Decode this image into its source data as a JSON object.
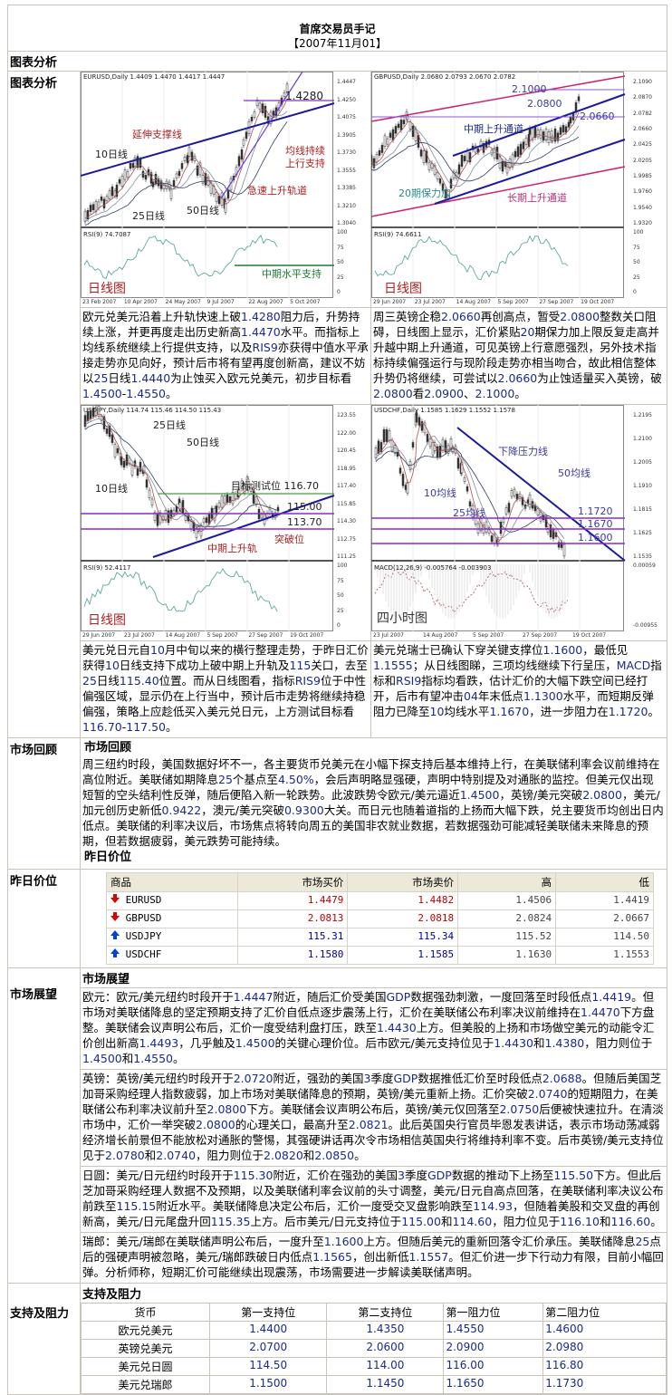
{
  "header": {
    "title": "首席交易员手记",
    "date": "【2007年11月01】"
  },
  "sections": {
    "chart_analysis": "图表分析",
    "market_review": "市场回顾",
    "yesterday_prices": "昨日价位",
    "market_outlook": "市场展望",
    "support_resistance": "支持及阻力"
  },
  "charts": [
    {
      "header": "EURUSD,Daily  1.4409 1.4470 1.4417 1.4447",
      "yticks": [
        "1.4447",
        "1.4250",
        "1.4075",
        "1.3905",
        "1.3730",
        "1.3555",
        "1.3385",
        "1.3210",
        "1.3040"
      ],
      "ind": "RSI(9) 74.7087",
      "indticks": [
        "100",
        "75",
        "50",
        "25",
        "0"
      ],
      "dates": [
        "23 Feb 2007",
        "10 Apr 2007",
        "24 May 2007",
        "9 Jul 2007",
        "22 Aug 2007",
        "5 Oct 2007"
      ],
      "annotations": [
        "1.4280",
        "延伸支撑线",
        "10日线",
        "均线持续",
        "上行支持",
        "急速上升轨道",
        "25日线",
        "50日线",
        "中期水平支持",
        "日线图"
      ]
    },
    {
      "header": "GBPUSD,Daily  2.0680 2.0793 2.0670 2.0782",
      "yticks": [
        "2.1090",
        "2.0870",
        "2.0782",
        "2.0660",
        "2.0425",
        "2.0205",
        "1.9985",
        "1.9760",
        "1.9540",
        "1.9320"
      ],
      "ind": "RSI(9) 74.6611",
      "indticks": [
        "100",
        "75",
        "50",
        "25",
        "0"
      ],
      "dates": [
        "29 Jun 2007",
        "23 Jul 2007",
        "14 Aug 2007",
        "5 Sep 2007",
        "27 Sep 2007",
        "19 Oct 2007"
      ],
      "annotations": [
        "2.1000",
        "2.0800",
        "2.0660",
        "中期上升通道",
        "20期保力加",
        "长期上升通道",
        "日线图"
      ]
    },
    {
      "header": "USDJPY,Daily  114.74 115.46 114.50 115.43",
      "yticks": [
        "123.55",
        "122.00",
        "120.45",
        "118.95",
        "117.40",
        "115.85",
        "114.30",
        "112.75",
        "111.25"
      ],
      "ind": "RSI(9) 52.4117",
      "indticks": [
        "100",
        "75",
        "50",
        "25",
        "0"
      ],
      "dates": [
        "29 Jun 2007",
        "23 Jul 2007",
        "14 Aug 2007",
        "5 Sep 2007",
        "27 Sep 2007",
        "19 Oct 2007"
      ],
      "annotations": [
        "25日线",
        "50日线",
        "10日线",
        "目标测试位 116.70",
        "115.00",
        "113.70",
        "突破位",
        "中期上升轨",
        "日线图"
      ]
    },
    {
      "header": "USDCHF,Daily  1.1585 1.1629 1.1552 1.1578",
      "yticks": [
        "1.2195",
        "1.2100",
        "1.2005",
        "1.1910",
        "1.1815",
        "1.1625",
        "1.1535"
      ],
      "ind": "MACD(12,26,9)  -0.005764  -0.003903",
      "indticks": [
        "0.00059",
        "-0.00955"
      ],
      "dates": [
        "23 Jul 2007",
        "14 Aug 2007",
        "5 Sep 2007",
        "27 Sep 2007",
        "19 Oct 2007"
      ],
      "annotations": [
        "下降压力线",
        "50均线",
        "10均线",
        "25均线",
        "1.1720",
        "1.1670",
        "1.1600",
        "四小时图"
      ]
    }
  ],
  "analysis": [
    "欧元兑美元沿着上升轨快速上破1.4280阻力后，升势持续上涨，并更再度走出历史新高1.4470水平。而指标上均线系统继续上行提供支持，以及RIS9亦获得中值水平承接走势亦见向好，预计后市将有望再度创新高，建议不妨以25日线1.4440为止蚀买入欧元兑美元，初步目标看1.4500-1.4550。",
    "周三英镑企稳2.0660再创高点，暂受2.0800整数关口阻碍，日线图上显示，汇价紧贴20期保力加上限反复走高并升越中期上升通道，可见英镑上行意愿强烈，另外技术指标持续偏强运行与现阶段走势亦相当吻合，故此相信整体升势仍将继续，可尝试以2.0660为止蚀适量买入英镑，破2.0800看2.0900、2.1000。",
    "美元兑日元自10月中旬以来的横行整理走势，于昨日汇价获得10日线支持下成功上破中期上升轨及115关口，去至25日线115.40位置。而从日线图看，指标RIS9位于中性偏强区域，显示仍在上行当中，预计后市走势将继续持稳偏强，策略上应趁低买入美元兑日元，上方测试目标看116.70-117.50。",
    "美元兑瑞士已确认下穿关键支撑位1.1600，最低见1.1555；从日线图睇，三项均线继续下行呈压，MACD指标和RSI9指标均看跌，估计汇价的大幅下跌空间已经打开，后市有望冲击04年末低点1.1300水平，而短期反弹阻力已降至10均线水平1.1670，进一步阻力在1.1720。"
  ],
  "review": "周三纽约时段，美国数据好坏不一，各主要货币兑美元在小幅下探支持后基本维持上行，在美联储利率会议前维持在高位附近。美联储如期降息25个基点至4.50%，会后声明略显强硬，声明中特别提及对通胀的监控。但美元仅出现短暂的空头结利性反弹，随后便陷入新一轮跌势。此波跌势令欧元/美元逼近1.4500，英镑/美元突破2.0800，美元/加元创历史新低0.9422，澳元/美元突破0.9300大关。而日元也随着道指的上扬而大幅下跌，兑主要货币均创出日内低点。美联储的利率决议后，市场焦点将转向周五的美国非农就业数据，若数据强劲可能减轻美联储未来降息的预期，但若数据疲弱，美元跌势可能持续。",
  "prices": {
    "columns": [
      "商品",
      "市场买价",
      "市场卖价",
      "高",
      "低"
    ],
    "rows": [
      {
        "symbol": "EURUSD",
        "dir": "down",
        "bid": "1.4479",
        "ask": "1.4482",
        "high": "1.4506",
        "low": "1.4419"
      },
      {
        "symbol": "GBPUSD",
        "dir": "down",
        "bid": "2.0813",
        "ask": "2.0818",
        "high": "2.0824",
        "low": "2.0667"
      },
      {
        "symbol": "USDJPY",
        "dir": "up",
        "bid": "115.31",
        "ask": "115.34",
        "high": "115.52",
        "low": "114.50"
      },
      {
        "symbol": "USDCHF",
        "dir": "up",
        "bid": "1.1580",
        "ask": "1.1585",
        "high": "1.1630",
        "low": "1.1553"
      }
    ]
  },
  "outlook": [
    "欧元：欧元/美元纽约时段开于1.4447附近，随后汇价受美国GDP数据强劲刺激，一度回落至时段低点1.4419。但市场对美联储降息的坚定预期支持了汇价自低点逐步震荡上行，汇价在美联储公布利率决议前维持在1.4470下方盘整。美联储会议声明公布后，汇价一度受结利盘打压，跌至1.4430上方。但美股的上扬和市场做空美元的动能令汇价创出新高1.4493，几乎触及1.4500的关键心理价位。后市欧元/美元支持位见于1.4430和1.4380，阻力则位于1.4500和1.4550。",
    "英镑：英镑/美元纽约时段开于2.0720附近，强劲的美国3季度GDP数据推低汇价至时段低点2.0688。但随后美国芝加哥采购经理人指数疲弱，加上市场对美联储降息的预期，英镑/美元重新上扬。汇价突破2.0740的短期阻力，在美联储公布利率决议前升至2.0800下方。美联储会议声明公布后，英镑/美元仅回落至2.0750后便被快速拉升。在清淡市场中，汇价一举突破2.0800的心理关口，最高升至2.0821。此后英国央行官员毕恩发表讲话，表示市场动荡减弱经济增长前景但不能放松对通胀的警惕，其强硬讲话再次令市场相信英国央行将维持利率不变。后市英镑/美元支持位见于2.0780和2.0740，阻力则位于2.0820和2.0850。",
    "日圆：美元/日元纽约时段开于115.30附近，汇价在强劲的美国3季度GDP数据的推动下上扬至115.50下方。但此后芝加哥采购经理人数据不及预期，以及美联储利率会议前的头寸调整，美元/日元自高点回落，在美联储利率决议公布前跌至115.15附近水平。美联储降息决定公布后，汇价一度受交叉盘影响跌至114.93，但随着美股和交叉盘的再创新高，美元/日元尾盘升回115.35上方。后市美元/日元支持位于115.00和114.60，阻力位见于116.10和116.60。",
    "瑞郎：美元/瑞郎在美联储声明公布后，一度升至1.1600上方。但随后美元的重新回落令汇价承压。美联储降息25点后的强硬声明被忽略，美元/瑞郎跌破日内低点1.1565，创出新低1.1557。但汇价进一步下行动力有限，目前小幅回弹。分析师称，短期汇价可能继续出现震荡，市场需要进一步解读美联储声明。"
  ],
  "levels": {
    "columns": [
      "货币",
      "第一支持位",
      "第二支持位",
      "第一阻力位",
      "第二阻力位"
    ],
    "rows": [
      [
        "欧元兑美元",
        "1.4400",
        "1.4350",
        "1.4550",
        "1.4600"
      ],
      [
        "英镑兑美元",
        "2.0700",
        "2.0600",
        "2.0900",
        "2.0980"
      ],
      [
        "美元兑日圆",
        "114.50",
        "114.00",
        "116.00",
        "116.80"
      ],
      [
        "美元兑瑞郎",
        "1.1500",
        "1.1450",
        "1.1650",
        "1.1730"
      ]
    ]
  },
  "colors": {
    "bid_down": "#c00000",
    "bid_up": "#0000a0",
    "number_text": "#1a2a8c",
    "border": "#c9c5b8",
    "header_bg": "#ece9d8"
  }
}
